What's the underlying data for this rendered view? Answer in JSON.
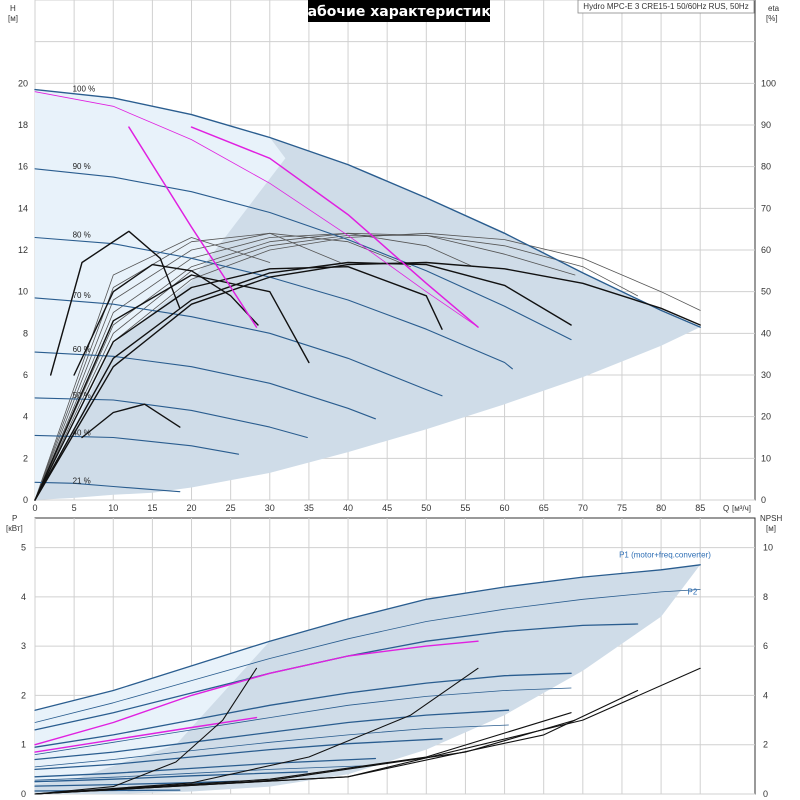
{
  "header": {
    "title": "Рабочие характеристики",
    "subtitle": "Hydro MPC-E 3 CRE15-1 50/60Hz RUS, 50Hz"
  },
  "colors": {
    "area_light": "#eaf4fc",
    "area": "#cfdce8",
    "area_edge": "#2f5f8f",
    "curve_blue": "#2a5d8f",
    "curve_gray": "#555555",
    "curve_black": "#111111",
    "curve_magenta": "#e020e0",
    "grid": "#d0d0d0"
  },
  "chart_data": [
    {
      "type": "line",
      "id": "head",
      "title": "Рабочие характеристики",
      "y_label_top": "H",
      "y_unit": "[м]",
      "y2_label_top": "eta",
      "y2_unit": "[%]",
      "x_label": "Q",
      "x_unit": "[м³/ч]",
      "xlim": [
        0,
        92
      ],
      "ylim": [
        0,
        24
      ],
      "y2lim": [
        0,
        120
      ],
      "x_ticks": [
        0,
        5,
        10,
        15,
        20,
        25,
        30,
        35,
        40,
        45,
        50,
        55,
        60,
        65,
        70,
        75,
        80,
        85
      ],
      "y_ticks": [
        0,
        2,
        4,
        6,
        8,
        10,
        12,
        14,
        16,
        18,
        20
      ],
      "y2_ticks": [
        0,
        10,
        20,
        30,
        40,
        50,
        60,
        70,
        80,
        90,
        100
      ],
      "grid": true,
      "speed_labels": [
        {
          "text": "100 %",
          "x": 4.8,
          "y": 19.6
        },
        {
          "text": "90 %",
          "x": 4.8,
          "y": 15.9
        },
        {
          "text": "80 %",
          "x": 4.8,
          "y": 12.6
        },
        {
          "text": "70 %",
          "x": 4.8,
          "y": 9.7
        },
        {
          "text": "60 %",
          "x": 4.8,
          "y": 7.1
        },
        {
          "text": "50 %",
          "x": 4.8,
          "y": 4.9
        },
        {
          "text": "40 %",
          "x": 4.8,
          "y": 3.1
        },
        {
          "text": "21 %",
          "x": 4.8,
          "y": 0.8
        }
      ],
      "envelope_upper": {
        "x": [
          0,
          10,
          20,
          30,
          40,
          50,
          60,
          70,
          80,
          85
        ],
        "y": [
          19.7,
          19.3,
          18.5,
          17.4,
          16.1,
          14.5,
          12.8,
          10.9,
          9.1,
          8.3
        ]
      },
      "envelope_lower": {
        "x": [
          0,
          5,
          10,
          15,
          20,
          30,
          40,
          50,
          60,
          70,
          80,
          85
        ],
        "y": [
          0.0,
          0.1,
          0.25,
          0.35,
          0.6,
          1.3,
          2.3,
          3.4,
          4.6,
          5.9,
          7.4,
          8.3
        ]
      },
      "light_region": {
        "x": [
          0,
          10,
          20,
          30,
          32,
          20,
          10,
          5,
          0
        ],
        "y": [
          19.7,
          19.3,
          18.5,
          17.4,
          16.4,
          10.5,
          7.5,
          3.5,
          0
        ]
      },
      "head_curves": [
        {
          "speed": 100,
          "x": [
            0,
            10,
            20,
            30,
            40,
            50,
            60,
            70,
            80,
            85
          ],
          "y": [
            19.7,
            19.3,
            18.5,
            17.4,
            16.1,
            14.5,
            12.8,
            10.9,
            9.1,
            8.3
          ]
        },
        {
          "speed": 90,
          "x": [
            0,
            10,
            20,
            30,
            40,
            50,
            60,
            68.5
          ],
          "y": [
            15.9,
            15.5,
            14.8,
            13.8,
            12.5,
            11.0,
            9.3,
            7.7
          ]
        },
        {
          "speed": 80,
          "x": [
            0,
            10,
            20,
            30,
            40,
            50,
            60,
            61
          ],
          "y": [
            12.6,
            12.3,
            11.6,
            10.7,
            9.6,
            8.2,
            6.6,
            6.3
          ]
        },
        {
          "speed": 70,
          "x": [
            0,
            10,
            20,
            30,
            40,
            50,
            52
          ],
          "y": [
            9.7,
            9.4,
            8.8,
            8.0,
            6.8,
            5.3,
            5.0
          ]
        },
        {
          "speed": 60,
          "x": [
            0,
            10,
            20,
            30,
            40,
            43.5
          ],
          "y": [
            7.1,
            6.9,
            6.4,
            5.6,
            4.4,
            3.9
          ]
        },
        {
          "speed": 50,
          "x": [
            0,
            10,
            20,
            30,
            34.8
          ],
          "y": [
            4.9,
            4.8,
            4.3,
            3.5,
            3.0
          ]
        },
        {
          "speed": 40,
          "x": [
            0,
            10,
            20,
            26
          ],
          "y": [
            3.1,
            3.0,
            2.6,
            2.2
          ]
        },
        {
          "speed": 21,
          "x": [
            0,
            5,
            10,
            15,
            18.5
          ],
          "y": [
            0.85,
            0.8,
            0.65,
            0.5,
            0.4
          ]
        }
      ],
      "eta_curves_thin": [
        {
          "x": [
            0,
            10,
            20,
            30,
            40,
            50,
            60,
            70,
            80,
            85
          ],
          "y2": [
            0,
            38,
            53,
            60,
            63,
            64,
            62.5,
            58,
            50,
            45.5
          ]
        },
        {
          "x": [
            0,
            10,
            20,
            30,
            40,
            50,
            60,
            70,
            77
          ],
          "y2": [
            0,
            40,
            55,
            61,
            63.5,
            63.5,
            61,
            56,
            49
          ]
        },
        {
          "x": [
            0,
            10,
            20,
            30,
            40,
            50,
            60,
            69
          ],
          "y2": [
            0,
            42,
            56,
            62,
            64,
            63.5,
            59,
            54
          ]
        },
        {
          "x": [
            0,
            10,
            20,
            30,
            40,
            50,
            56
          ],
          "y2": [
            0,
            45,
            58,
            63,
            64,
            61,
            56
          ]
        },
        {
          "x": [
            0,
            10,
            20,
            30,
            40,
            48
          ],
          "y2": [
            0,
            48,
            60,
            64,
            62,
            56
          ]
        },
        {
          "x": [
            0,
            10,
            20,
            30,
            39
          ],
          "y2": [
            0,
            51,
            62,
            64,
            57
          ]
        },
        {
          "x": [
            0,
            10,
            20,
            30
          ],
          "y2": [
            0,
            54,
            63,
            57
          ]
        }
      ],
      "eta_curves_bold": [
        {
          "x": [
            0,
            10,
            20,
            30,
            40,
            50,
            60,
            70,
            80,
            85
          ],
          "y2": [
            0,
            32,
            47,
            53.5,
            56.5,
            57,
            55.5,
            52,
            46,
            42
          ]
        },
        {
          "x": [
            0,
            10,
            20,
            30,
            40,
            50,
            60,
            68.5
          ],
          "y2": [
            0,
            34,
            48,
            54.5,
            57,
            56.5,
            51.5,
            42
          ]
        },
        {
          "x": [
            0,
            10,
            20,
            30,
            40,
            50,
            52
          ],
          "y2": [
            0,
            38,
            51,
            55.5,
            56,
            49,
            41
          ]
        },
        {
          "x": [
            0,
            10,
            20,
            30,
            35
          ],
          "y2": [
            0,
            43,
            54,
            50,
            33
          ]
        },
        {
          "x": [
            5,
            10,
            15,
            20,
            25,
            28.5
          ],
          "y2": [
            30,
            50,
            56.5,
            55,
            49,
            42
          ]
        },
        {
          "x": [
            2,
            6,
            12,
            16,
            18.5
          ],
          "y2": [
            30,
            57,
            64.5,
            58,
            46
          ]
        },
        {
          "x": [
            6,
            10,
            14,
            18.5
          ],
          "y2": [
            15,
            21,
            23,
            17.5
          ]
        }
      ],
      "system_curves": [
        {
          "x": [
            12,
            16,
            20,
            24,
            28.3
          ],
          "y": [
            17.9,
            15.5,
            13.1,
            10.8,
            8.3
          ]
        },
        {
          "x": [
            20,
            30,
            40,
            50,
            56.6
          ],
          "y": [
            17.9,
            16.4,
            13.7,
            10.4,
            8.3
          ]
        }
      ]
    },
    {
      "type": "line",
      "id": "power",
      "y_label_top": "P",
      "y_unit": "[кВт]",
      "y2_label_top": "NPSH",
      "y2_unit": "[м]",
      "xlim": [
        0,
        92
      ],
      "ylim": [
        0,
        5.6
      ],
      "y2lim": [
        0,
        11.2
      ],
      "y_ticks": [
        0,
        1,
        2,
        3,
        4,
        5
      ],
      "y2_ticks": [
        0,
        2,
        4,
        6,
        8,
        10
      ],
      "grid": true,
      "series_labels": [
        {
          "text": "P1 (motor+freq.converter)",
          "x": 80.5,
          "y": 4.8
        },
        {
          "text": "P2",
          "x": 84,
          "y": 4.05
        }
      ],
      "envelope_upper": {
        "x": [
          0,
          10,
          20,
          30,
          40,
          50,
          60,
          70,
          80,
          85
        ],
        "y": [
          1.7,
          2.1,
          2.6,
          3.1,
          3.55,
          3.95,
          4.2,
          4.4,
          4.55,
          4.65
        ]
      },
      "envelope_lower": {
        "x": [
          0,
          10,
          20,
          30,
          40,
          50,
          60,
          70,
          80,
          85
        ],
        "y": [
          0.0,
          0.0,
          0.05,
          0.15,
          0.4,
          0.9,
          1.6,
          2.5,
          3.6,
          4.65
        ]
      },
      "light_region": {
        "x": [
          0,
          10,
          20,
          30,
          18,
          5,
          0
        ],
        "y": [
          1.7,
          2.1,
          2.6,
          3.1,
          1.0,
          0.3,
          0.2
        ]
      },
      "p1_curves": [
        {
          "x": [
            0,
            10,
            20,
            30,
            40,
            50,
            60,
            70,
            80,
            85
          ],
          "y": [
            1.7,
            2.1,
            2.6,
            3.1,
            3.55,
            3.95,
            4.2,
            4.4,
            4.55,
            4.65
          ]
        },
        {
          "x": [
            0,
            10,
            20,
            30,
            40,
            50,
            60,
            70,
            77
          ],
          "y": [
            1.3,
            1.65,
            2.05,
            2.45,
            2.8,
            3.1,
            3.3,
            3.42,
            3.45
          ]
        },
        {
          "x": [
            0,
            10,
            20,
            30,
            40,
            50,
            60,
            68.5
          ],
          "y": [
            0.95,
            1.2,
            1.5,
            1.8,
            2.05,
            2.25,
            2.4,
            2.45
          ]
        },
        {
          "x": [
            0,
            10,
            20,
            30,
            40,
            50,
            60.5
          ],
          "y": [
            0.7,
            0.85,
            1.05,
            1.25,
            1.45,
            1.6,
            1.7
          ]
        },
        {
          "x": [
            0,
            10,
            20,
            30,
            40,
            52
          ],
          "y": [
            0.5,
            0.6,
            0.75,
            0.9,
            1.02,
            1.12
          ]
        },
        {
          "x": [
            0,
            10,
            20,
            30,
            43.5
          ],
          "y": [
            0.35,
            0.42,
            0.52,
            0.62,
            0.72
          ]
        },
        {
          "x": [
            0,
            10,
            20,
            34.8
          ],
          "y": [
            0.25,
            0.3,
            0.37,
            0.45
          ]
        },
        {
          "x": [
            0,
            10,
            20,
            26
          ],
          "y": [
            0.16,
            0.19,
            0.23,
            0.26
          ]
        },
        {
          "x": [
            0,
            10,
            18.5
          ],
          "y": [
            0.06,
            0.07,
            0.08
          ]
        }
      ],
      "p2_curves": [
        {
          "x": [
            0,
            10,
            20,
            30,
            40,
            50,
            60,
            70,
            80,
            85
          ],
          "y": [
            1.45,
            1.85,
            2.3,
            2.75,
            3.15,
            3.5,
            3.75,
            3.95,
            4.1,
            4.15
          ]
        },
        {
          "x": [
            0,
            10,
            20,
            30,
            40,
            50,
            60,
            68.5
          ],
          "y": [
            0.8,
            1.05,
            1.3,
            1.55,
            1.8,
            1.98,
            2.1,
            2.15
          ]
        },
        {
          "x": [
            0,
            10,
            20,
            30,
            40,
            50,
            60.5
          ],
          "y": [
            0.55,
            0.7,
            0.88,
            1.05,
            1.2,
            1.33,
            1.4
          ]
        },
        {
          "x": [
            0,
            10,
            20,
            30,
            43.5
          ],
          "y": [
            0.28,
            0.34,
            0.42,
            0.5,
            0.58
          ]
        }
      ],
      "power_system_curves": [
        {
          "x": [
            0,
            10,
            20,
            28.3
          ],
          "y": [
            0.85,
            1.1,
            1.35,
            1.55
          ]
        },
        {
          "x": [
            0,
            10,
            20,
            30,
            40,
            50,
            56.6
          ],
          "y": [
            1.0,
            1.45,
            2.0,
            2.45,
            2.8,
            3.0,
            3.1
          ]
        }
      ],
      "npsh_curves": [
        {
          "x": [
            0,
            10,
            18,
            24,
            28.3
          ],
          "y2": [
            0,
            0.3,
            1.3,
            3.0,
            5.1
          ]
        },
        {
          "x": [
            0,
            20,
            35,
            48,
            56.6
          ],
          "y2": [
            0,
            0.45,
            1.5,
            3.2,
            5.1
          ]
        },
        {
          "x": [
            0,
            30,
            50,
            68.5
          ],
          "y2": [
            0,
            0.6,
            1.5,
            3.3
          ]
        },
        {
          "x": [
            0,
            30,
            55,
            69
          ],
          "y2": [
            0,
            0.55,
            1.7,
            3.0
          ]
        },
        {
          "x": [
            0,
            40,
            65,
            77
          ],
          "y2": [
            0,
            0.7,
            2.4,
            4.2
          ]
        },
        {
          "x": [
            0,
            40,
            70,
            85
          ],
          "y2": [
            0,
            0.7,
            3.0,
            5.1
          ]
        }
      ]
    }
  ]
}
